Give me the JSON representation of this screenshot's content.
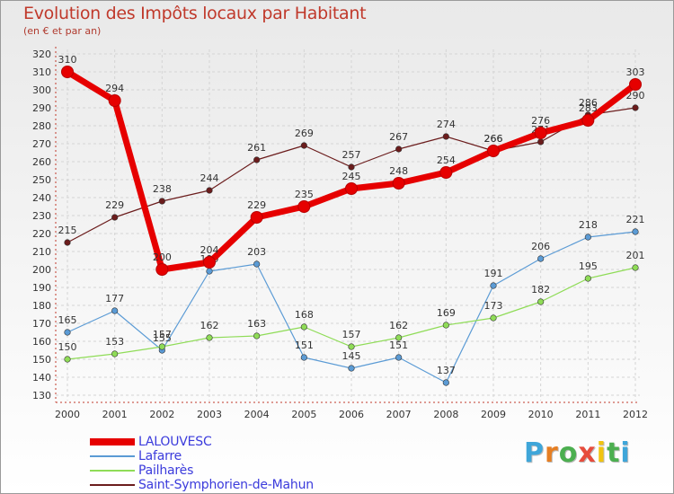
{
  "title": "Evolution des Impôts locaux par Habitant",
  "subtitle": "(en € et par an)",
  "logo": {
    "text": "Proxiti",
    "letter_colors": [
      "#3fa6d9",
      "#e67e22",
      "#4caf50",
      "#e74c3c",
      "#f1c40f",
      "#4caf50",
      "#3fa6d9"
    ]
  },
  "chart_data": {
    "type": "line",
    "title": "Evolution des Impôts locaux par Habitant",
    "subtitle": "(en € et par an)",
    "xlabel": "",
    "ylabel": "",
    "categories": [
      "2000",
      "2001",
      "2002",
      "2003",
      "2004",
      "2005",
      "2006",
      "2007",
      "2008",
      "2009",
      "2010",
      "2011",
      "2012"
    ],
    "ylim": [
      130,
      320
    ],
    "yticks": [
      130,
      140,
      150,
      160,
      170,
      180,
      190,
      200,
      210,
      220,
      230,
      240,
      250,
      260,
      270,
      280,
      290,
      300,
      310,
      320
    ],
    "grid": true,
    "legend_position": "bottom-left",
    "series": [
      {
        "name": "Saint-Symphorien-de-Mahun",
        "color": "#6b1c1c",
        "values": [
          215,
          229,
          238,
          244,
          261,
          269,
          257,
          267,
          274,
          266,
          271,
          286,
          290
        ]
      },
      {
        "name": "Lafarre",
        "color": "#5b9bd5",
        "values": [
          165,
          177,
          155,
          199,
          203,
          151,
          145,
          151,
          137,
          191,
          206,
          218,
          221
        ]
      },
      {
        "name": "Pailharès",
        "color": "#8fdc57",
        "values": [
          150,
          153,
          157,
          162,
          163,
          168,
          157,
          162,
          169,
          173,
          182,
          195,
          201
        ]
      },
      {
        "name": "LALOUVESC",
        "color": "#e60000",
        "values": [
          310,
          294,
          200,
          204,
          229,
          235,
          245,
          248,
          254,
          266,
          276,
          283,
          303
        ]
      }
    ],
    "legend_order": [
      "LALOUVESC",
      "Lafarre",
      "Pailharès",
      "Saint-Symphorien-de-Mahun"
    ]
  }
}
